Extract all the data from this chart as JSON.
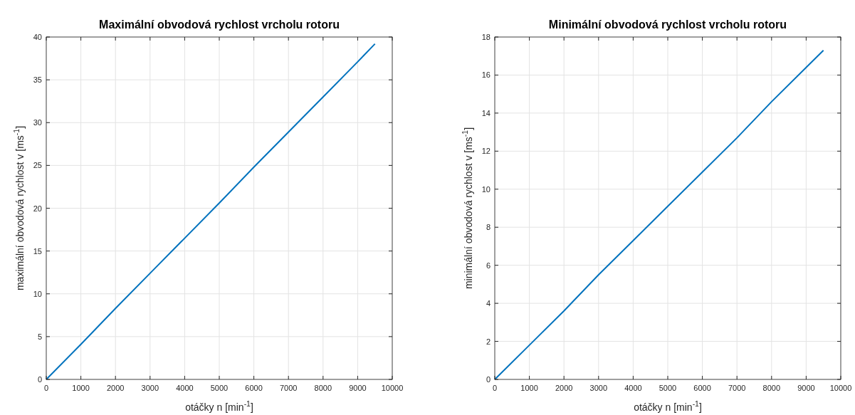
{
  "chart_data": [
    {
      "type": "line",
      "title": "Maximální obvodová rychlost vrcholu rotoru",
      "xlabel": "otáčky n [min$^{-1}$]",
      "ylabel": "maximální obvodová rychlost v [ms$^{-1}$]",
      "x": [
        0,
        1000,
        2000,
        3000,
        4000,
        5000,
        6000,
        7000,
        8000,
        9000,
        9500
      ],
      "series": [
        {
          "color": "#0072bd",
          "values": [
            0,
            4.1,
            8.3,
            12.4,
            16.5,
            20.6,
            24.8,
            28.9,
            33.0,
            37.1,
            39.2
          ]
        }
      ],
      "xlim": [
        0,
        10000
      ],
      "xticks": [
        0,
        1000,
        2000,
        3000,
        4000,
        5000,
        6000,
        7000,
        8000,
        9000,
        10000
      ],
      "ylim": [
        0,
        40
      ],
      "yticks": [
        0,
        5,
        10,
        15,
        20,
        25,
        30,
        35,
        40
      ],
      "grid": true,
      "line_style": "solid",
      "marker": "none"
    },
    {
      "type": "line",
      "title": "Minimální obvodová rychlost vrcholu rotoru",
      "xlabel": "otáčky n [min$^{-1}$]",
      "ylabel": "minimální obvodová rychlost v [ms$^{-1}$]",
      "x": [
        0,
        1000,
        2000,
        3000,
        4000,
        5000,
        6000,
        7000,
        8000,
        9000,
        9500
      ],
      "series": [
        {
          "color": "#0072bd",
          "values": [
            0,
            1.8,
            3.6,
            5.5,
            7.3,
            9.1,
            10.9,
            12.7,
            14.6,
            16.4,
            17.3
          ]
        }
      ],
      "xlim": [
        0,
        10000
      ],
      "xticks": [
        0,
        1000,
        2000,
        3000,
        4000,
        5000,
        6000,
        7000,
        8000,
        9000,
        10000
      ],
      "ylim": [
        0,
        18
      ],
      "yticks": [
        0,
        2,
        4,
        6,
        8,
        10,
        12,
        14,
        16,
        18
      ],
      "grid": true,
      "line_style": "solid",
      "marker": "none"
    }
  ]
}
